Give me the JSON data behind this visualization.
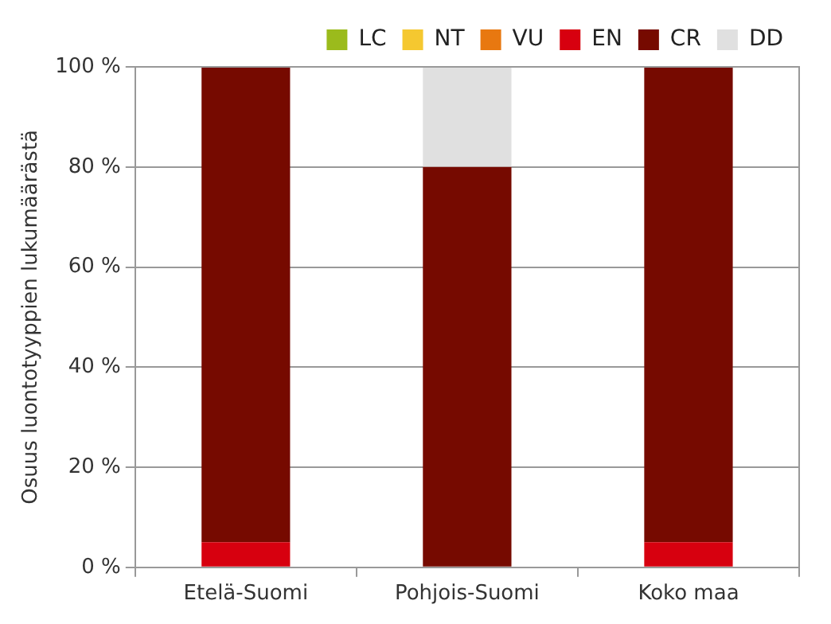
{
  "chart_data": {
    "type": "bar",
    "stacked": true,
    "ylabel": "Osuus luontotyyppien lukumäärästä",
    "categories": [
      "Etelä-Suomi",
      "Pohjois-Suomi",
      "Koko maa"
    ],
    "series": [
      {
        "name": "LC",
        "color": "#9bbb1c",
        "values": [
          0,
          0,
          0
        ]
      },
      {
        "name": "NT",
        "color": "#f5c830",
        "values": [
          0,
          0,
          0
        ]
      },
      {
        "name": "VU",
        "color": "#e87810",
        "values": [
          0,
          0,
          0
        ]
      },
      {
        "name": "EN",
        "color": "#d7000f",
        "values": [
          5,
          0,
          5
        ]
      },
      {
        "name": "CR",
        "color": "#760a00",
        "values": [
          95,
          80,
          95
        ]
      },
      {
        "name": "DD",
        "color": "#e0e0e0",
        "values": [
          0,
          20,
          0
        ]
      }
    ],
    "ylim": [
      0,
      100
    ],
    "yticks": [
      {
        "value": 0,
        "label": "0 %"
      },
      {
        "value": 20,
        "label": "20 %"
      },
      {
        "value": 40,
        "label": "40 %"
      },
      {
        "value": 60,
        "label": "60 %"
      },
      {
        "value": 80,
        "label": "80 %"
      },
      {
        "value": 100,
        "label": "100 %"
      }
    ],
    "grid": "y",
    "legend": "top right"
  }
}
